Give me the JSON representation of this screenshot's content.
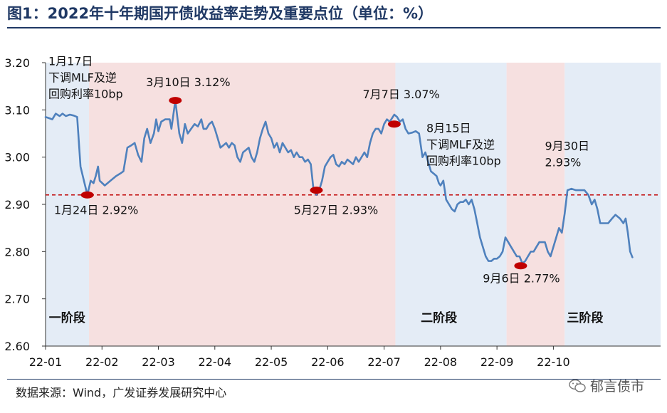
{
  "title": "图1：2022年十年期国开债收益率走势及重要点位（单位：%）",
  "source": "数据来源：Wind，广发证券发展研究中心",
  "watermark": "郁言债市",
  "colors": {
    "line": "#4f81bd",
    "marker": "#c00000",
    "ref_line": "#c00000",
    "blue_band": "#e4ecf6",
    "pink_band": "#f6e0e0",
    "title": "#1f3864"
  },
  "chart_data": {
    "type": "line",
    "title": "2022年十年期国开债收益率走势及重要点位",
    "unit": "%",
    "x_start_month": 1,
    "x_end_month": 11.9,
    "xticks": [
      {
        "m": 1,
        "label": "22-01"
      },
      {
        "m": 2,
        "label": "22-02"
      },
      {
        "m": 3,
        "label": "22-03"
      },
      {
        "m": 4,
        "label": "22-04"
      },
      {
        "m": 5,
        "label": "22-05"
      },
      {
        "m": 6,
        "label": "22-06"
      },
      {
        "m": 7,
        "label": "22-07"
      },
      {
        "m": 8,
        "label": "22-08"
      },
      {
        "m": 9,
        "label": "22-09"
      },
      {
        "m": 10,
        "label": "22-10"
      }
    ],
    "ylim": [
      2.6,
      3.2
    ],
    "yticks": [
      {
        "v": 3.2,
        "label": "3.20"
      },
      {
        "v": 3.1,
        "label": "3.10"
      },
      {
        "v": 3.0,
        "label": "3.00"
      },
      {
        "v": 2.9,
        "label": "2.90"
      },
      {
        "v": 2.8,
        "label": "2.80"
      },
      {
        "v": 2.7,
        "label": "2.70"
      },
      {
        "v": 2.6,
        "label": "2.60"
      }
    ],
    "reference_line": 2.92,
    "bands": [
      {
        "from": 1.0,
        "to": 1.77,
        "color": "blue"
      },
      {
        "from": 1.77,
        "to": 7.2,
        "color": "pink"
      },
      {
        "from": 7.2,
        "to": 9.17,
        "color": "blue"
      },
      {
        "from": 9.17,
        "to": 10.2,
        "color": "pink"
      },
      {
        "from": 10.2,
        "to": 11.9,
        "color": "blue"
      }
    ],
    "phases": [
      {
        "label": "一阶段",
        "m": 1.06
      },
      {
        "label": "二阶段",
        "m": 7.65
      },
      {
        "label": "三阶段",
        "m": 10.24
      }
    ],
    "series": [
      {
        "name": "十年期国开债收益率",
        "points": [
          [
            1.0,
            3.085
          ],
          [
            1.05,
            3.083
          ],
          [
            1.12,
            3.08
          ],
          [
            1.18,
            3.092
          ],
          [
            1.25,
            3.087
          ],
          [
            1.3,
            3.092
          ],
          [
            1.36,
            3.087
          ],
          [
            1.43,
            3.09
          ],
          [
            1.5,
            3.088
          ],
          [
            1.56,
            3.085
          ],
          [
            1.62,
            2.98
          ],
          [
            1.68,
            2.95
          ],
          [
            1.74,
            2.92
          ],
          [
            1.8,
            2.95
          ],
          [
            1.85,
            2.945
          ],
          [
            1.89,
            2.96
          ],
          [
            1.93,
            2.98
          ],
          [
            1.96,
            2.95
          ],
          [
            2.05,
            2.94
          ],
          [
            2.15,
            2.95
          ],
          [
            2.25,
            2.96
          ],
          [
            2.32,
            2.965
          ],
          [
            2.38,
            2.97
          ],
          [
            2.45,
            3.02
          ],
          [
            2.52,
            3.025
          ],
          [
            2.58,
            3.03
          ],
          [
            2.64,
            3.005
          ],
          [
            2.7,
            2.99
          ],
          [
            2.75,
            3.04
          ],
          [
            2.8,
            3.06
          ],
          [
            2.86,
            3.03
          ],
          [
            2.92,
            3.05
          ],
          [
            2.96,
            3.08
          ],
          [
            3.0,
            3.055
          ],
          [
            3.05,
            3.075
          ],
          [
            3.12,
            3.08
          ],
          [
            3.2,
            3.08
          ],
          [
            3.23,
            3.06
          ],
          [
            3.3,
            3.12
          ],
          [
            3.37,
            3.05
          ],
          [
            3.42,
            3.03
          ],
          [
            3.47,
            3.07
          ],
          [
            3.52,
            3.05
          ],
          [
            3.58,
            3.06
          ],
          [
            3.64,
            3.07
          ],
          [
            3.7,
            3.065
          ],
          [
            3.76,
            3.08
          ],
          [
            3.8,
            3.06
          ],
          [
            3.85,
            3.06
          ],
          [
            3.9,
            3.07
          ],
          [
            3.95,
            3.075
          ],
          [
            4.0,
            3.06
          ],
          [
            4.05,
            3.04
          ],
          [
            4.1,
            3.02
          ],
          [
            4.15,
            3.025
          ],
          [
            4.2,
            3.03
          ],
          [
            4.25,
            3.02
          ],
          [
            4.3,
            3.03
          ],
          [
            4.35,
            3.025
          ],
          [
            4.4,
            3.0
          ],
          [
            4.45,
            2.99
          ],
          [
            4.5,
            3.01
          ],
          [
            4.55,
            3.015
          ],
          [
            4.6,
            3.02
          ],
          [
            4.65,
            3.0
          ],
          [
            4.7,
            2.99
          ],
          [
            4.75,
            3.01
          ],
          [
            4.8,
            3.04
          ],
          [
            4.85,
            3.06
          ],
          [
            4.9,
            3.075
          ],
          [
            4.95,
            3.05
          ],
          [
            5.0,
            3.04
          ],
          [
            5.05,
            3.02
          ],
          [
            5.1,
            3.03
          ],
          [
            5.15,
            3.01
          ],
          [
            5.2,
            3.03
          ],
          [
            5.25,
            3.02
          ],
          [
            5.3,
            3.01
          ],
          [
            5.35,
            3.015
          ],
          [
            5.4,
            3.0
          ],
          [
            5.45,
            3.01
          ],
          [
            5.5,
            3.0
          ],
          [
            5.55,
            3.0
          ],
          [
            5.6,
            2.99
          ],
          [
            5.65,
            2.995
          ],
          [
            5.7,
            2.985
          ],
          [
            5.75,
            2.93
          ],
          [
            5.8,
            2.92
          ],
          [
            5.85,
            2.93
          ],
          [
            5.9,
            2.95
          ],
          [
            5.95,
            2.98
          ],
          [
            6.0,
            2.99
          ],
          [
            6.05,
            3.0
          ],
          [
            6.1,
            3.005
          ],
          [
            6.15,
            2.985
          ],
          [
            6.2,
            2.98
          ],
          [
            6.25,
            2.99
          ],
          [
            6.3,
            2.985
          ],
          [
            6.35,
            2.995
          ],
          [
            6.4,
            2.99
          ],
          [
            6.45,
            2.985
          ],
          [
            6.5,
            3.0
          ],
          [
            6.55,
            2.99
          ],
          [
            6.6,
            3.0
          ],
          [
            6.65,
            3.01
          ],
          [
            6.7,
            3.0
          ],
          [
            6.75,
            3.03
          ],
          [
            6.8,
            3.05
          ],
          [
            6.85,
            3.06
          ],
          [
            6.9,
            3.06
          ],
          [
            6.95,
            3.05
          ],
          [
            7.0,
            3.07
          ],
          [
            7.05,
            3.08
          ],
          [
            7.1,
            3.075
          ],
          [
            7.18,
            3.09
          ],
          [
            7.23,
            3.085
          ],
          [
            7.28,
            3.075
          ],
          [
            7.33,
            3.08
          ],
          [
            7.38,
            3.06
          ],
          [
            7.43,
            3.05
          ],
          [
            7.5,
            3.052
          ],
          [
            7.56,
            3.055
          ],
          [
            7.62,
            3.05
          ],
          [
            7.68,
            3.0
          ],
          [
            7.73,
            3.01
          ],
          [
            7.78,
            2.99
          ],
          [
            7.83,
            2.97
          ],
          [
            7.88,
            2.965
          ],
          [
            7.93,
            2.96
          ],
          [
            7.97,
            2.945
          ],
          [
            8.0,
            2.94
          ],
          [
            8.05,
            2.95
          ],
          [
            8.1,
            2.91
          ],
          [
            8.15,
            2.9
          ],
          [
            8.2,
            2.89
          ],
          [
            8.25,
            2.885
          ],
          [
            8.3,
            2.9
          ],
          [
            8.35,
            2.905
          ],
          [
            8.4,
            2.905
          ],
          [
            8.45,
            2.91
          ],
          [
            8.5,
            2.9
          ],
          [
            8.55,
            2.91
          ],
          [
            8.6,
            2.89
          ],
          [
            8.65,
            2.86
          ],
          [
            8.7,
            2.83
          ],
          [
            8.75,
            2.81
          ],
          [
            8.8,
            2.79
          ],
          [
            8.85,
            2.78
          ],
          [
            8.9,
            2.78
          ],
          [
            8.95,
            2.785
          ],
          [
            9.0,
            2.785
          ],
          [
            9.05,
            2.79
          ],
          [
            9.1,
            2.8
          ],
          [
            9.15,
            2.83
          ],
          [
            9.2,
            2.82
          ],
          [
            9.25,
            2.81
          ],
          [
            9.3,
            2.8
          ],
          [
            9.35,
            2.79
          ],
          [
            9.4,
            2.79
          ],
          [
            9.45,
            2.775
          ],
          [
            9.5,
            2.78
          ],
          [
            9.55,
            2.79
          ],
          [
            9.6,
            2.8
          ],
          [
            9.65,
            2.8
          ],
          [
            9.7,
            2.81
          ],
          [
            9.75,
            2.82
          ],
          [
            9.8,
            2.82
          ],
          [
            9.85,
            2.82
          ],
          [
            9.9,
            2.8
          ],
          [
            9.95,
            2.79
          ],
          [
            10.0,
            2.81
          ],
          [
            10.05,
            2.83
          ],
          [
            10.1,
            2.85
          ],
          [
            10.15,
            2.84
          ],
          [
            10.2,
            2.88
          ],
          [
            10.25,
            2.93
          ],
          [
            10.32,
            2.933
          ],
          [
            10.4,
            2.93
          ],
          [
            10.48,
            2.93
          ],
          [
            10.55,
            2.93
          ],
          [
            10.62,
            2.92
          ],
          [
            10.68,
            2.9
          ],
          [
            10.73,
            2.91
          ],
          [
            10.78,
            2.89
          ],
          [
            10.83,
            2.86
          ],
          [
            10.9,
            2.86
          ],
          [
            10.97,
            2.86
          ],
          [
            11.04,
            2.87
          ],
          [
            11.1,
            2.878
          ],
          [
            11.18,
            2.87
          ],
          [
            11.24,
            2.86
          ],
          [
            11.28,
            2.87
          ],
          [
            11.32,
            2.84
          ],
          [
            11.36,
            2.8
          ],
          [
            11.4,
            2.788
          ]
        ]
      }
    ],
    "markers": [
      {
        "m": 1.74,
        "v": 2.92
      },
      {
        "m": 3.3,
        "v": 3.12
      },
      {
        "m": 5.8,
        "v": 2.93
      },
      {
        "m": 7.18,
        "v": 3.07
      },
      {
        "m": 9.42,
        "v": 2.77
      }
    ],
    "annotations": [
      {
        "lines": [
          "1月17日",
          "下调MLF及逆",
          "回购利率10bp"
        ],
        "m": 1.05,
        "v": 3.195
      },
      {
        "lines": [
          "3月10日  3.12%"
        ],
        "m": 2.78,
        "v": 3.15
      },
      {
        "lines": [
          "1月24日  2.92%"
        ],
        "m": 1.15,
        "v": 2.88
      },
      {
        "lines": [
          "5月27日  2.93%"
        ],
        "m": 5.4,
        "v": 2.88
      },
      {
        "lines": [
          "7月7日  3.07%"
        ],
        "m": 6.62,
        "v": 3.125
      },
      {
        "lines": [
          "8月15日",
          "下调MLF及逆",
          "回购利率10bp"
        ],
        "m": 7.75,
        "v": 3.053
      },
      {
        "lines": [
          "9月6日  2.77%"
        ],
        "m": 8.75,
        "v": 2.735
      },
      {
        "lines": [
          "9月30日",
          "2.93%"
        ],
        "m": 9.85,
        "v": 3.015
      }
    ]
  }
}
